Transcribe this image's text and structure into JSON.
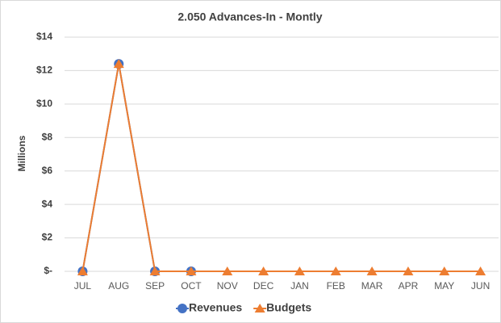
{
  "chart_data": {
    "type": "line",
    "title": "2.050 Advances-In - Montly",
    "y_label": "Millions",
    "categories": [
      "JUL",
      "AUG",
      "SEP",
      "OCT",
      "NOV",
      "DEC",
      "JAN",
      "FEB",
      "MAR",
      "APR",
      "MAY",
      "JUN"
    ],
    "series": [
      {
        "name": "Revenues",
        "color": "#4472c4",
        "marker": "circle",
        "values": [
          0,
          12.4,
          0,
          0,
          null,
          null,
          null,
          null,
          null,
          null,
          null,
          null
        ]
      },
      {
        "name": "Budgets",
        "color": "#ed7d31",
        "marker": "triangle",
        "values": [
          0,
          12.4,
          0,
          0,
          0,
          0,
          0,
          0,
          0,
          0,
          0,
          0
        ]
      }
    ],
    "ylim": [
      0,
      14
    ],
    "yticks": [
      {
        "value": 0,
        "label": "$-"
      },
      {
        "value": 2,
        "label": "$2"
      },
      {
        "value": 4,
        "label": "$4"
      },
      {
        "value": 6,
        "label": "$6"
      },
      {
        "value": 8,
        "label": "$8"
      },
      {
        "value": 10,
        "label": "$10"
      },
      {
        "value": 12,
        "label": "$12"
      },
      {
        "value": 14,
        "label": "$14"
      }
    ],
    "grid": true,
    "legend": "bottom"
  }
}
